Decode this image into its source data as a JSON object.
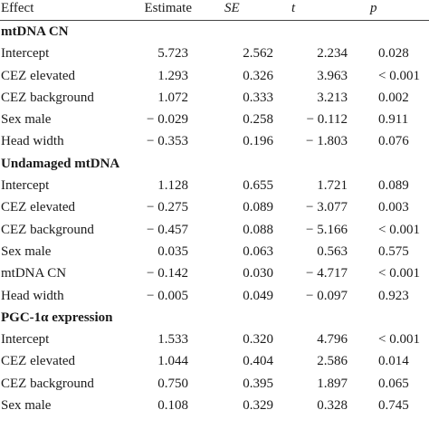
{
  "header": {
    "effect": "Effect",
    "estimate": "Estimate",
    "se": "SE",
    "t": "t",
    "p": "p"
  },
  "rows": [
    {
      "type": "section",
      "label": "mtDNA CN"
    },
    {
      "type": "data",
      "effect": "Intercept",
      "estimate": "5.723",
      "se": "2.562",
      "t": "2.234",
      "p": "0.028"
    },
    {
      "type": "data",
      "effect": "CEZ elevated",
      "estimate": "1.293",
      "se": "0.326",
      "t": "3.963",
      "p": "< 0.001"
    },
    {
      "type": "data",
      "effect": "CEZ background",
      "estimate": "1.072",
      "se": "0.333",
      "t": "3.213",
      "p": "0.002"
    },
    {
      "type": "data",
      "effect": "Sex male",
      "estimate": "− 0.029",
      "se": "0.258",
      "t": "− 0.112",
      "p": "0.911"
    },
    {
      "type": "data",
      "effect": "Head width",
      "estimate": "− 0.353",
      "se": "0.196",
      "t": "− 1.803",
      "p": "0.076"
    },
    {
      "type": "section",
      "label": "Undamaged mtDNA"
    },
    {
      "type": "data",
      "effect": "Intercept",
      "estimate": "1.128",
      "se": "0.655",
      "t": "1.721",
      "p": "0.089"
    },
    {
      "type": "data",
      "effect": "CEZ elevated",
      "estimate": "− 0.275",
      "se": "0.089",
      "t": "− 3.077",
      "p": "0.003"
    },
    {
      "type": "data",
      "effect": "CEZ background",
      "estimate": "− 0.457",
      "se": "0.088",
      "t": "− 5.166",
      "p": "< 0.001"
    },
    {
      "type": "data",
      "effect": "Sex male",
      "estimate": "0.035",
      "se": "0.063",
      "t": "0.563",
      "p": "0.575"
    },
    {
      "type": "data",
      "effect": "mtDNA CN",
      "estimate": "− 0.142",
      "se": "0.030",
      "t": "− 4.717",
      "p": "< 0.001"
    },
    {
      "type": "data",
      "effect": "Head width",
      "estimate": "− 0.005",
      "se": "0.049",
      "t": "− 0.097",
      "p": "0.923"
    },
    {
      "type": "section",
      "label": "PGC-1α expression"
    },
    {
      "type": "data",
      "effect": "Intercept",
      "estimate": "1.533",
      "se": "0.320",
      "t": "4.796",
      "p": "< 0.001"
    },
    {
      "type": "data",
      "effect": "CEZ elevated",
      "estimate": "1.044",
      "se": "0.404",
      "t": "2.586",
      "p": "0.014"
    },
    {
      "type": "data",
      "effect": "CEZ background",
      "estimate": "0.750",
      "se": "0.395",
      "t": "1.897",
      "p": "0.065"
    },
    {
      "type": "data",
      "effect": "Sex male",
      "estimate": "0.108",
      "se": "0.329",
      "t": "0.328",
      "p": "0.745"
    }
  ]
}
